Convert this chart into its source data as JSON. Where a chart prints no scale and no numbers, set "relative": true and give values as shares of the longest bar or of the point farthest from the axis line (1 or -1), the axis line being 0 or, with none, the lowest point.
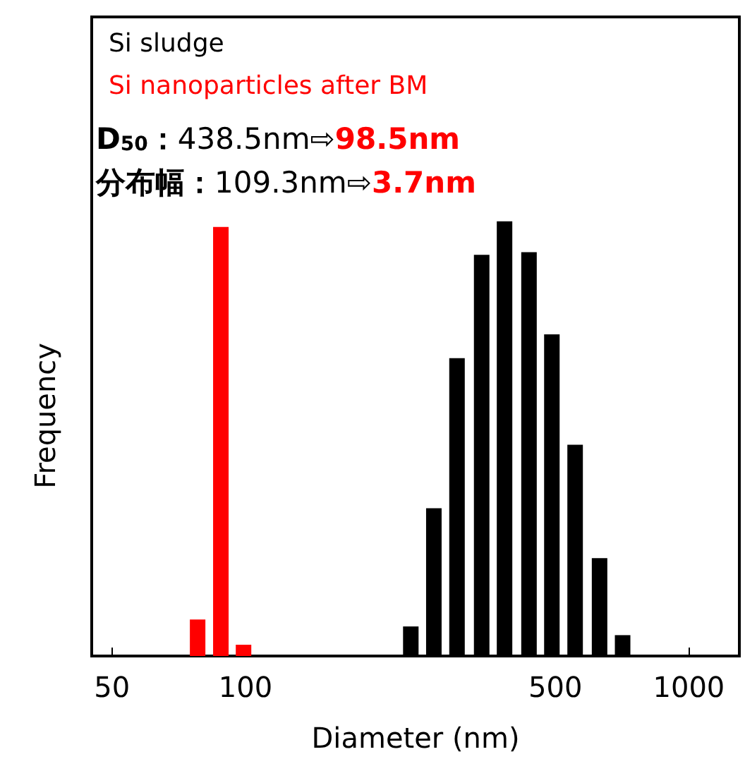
{
  "chart_data": {
    "type": "bar",
    "xlabel": "Diameter (nm)",
    "ylabel": "Frequency",
    "relative": true,
    "log": "x",
    "xlim": [
      45,
      1300
    ],
    "xticks": [
      50,
      100,
      500,
      1000
    ],
    "legend": "top left",
    "grid": false,
    "series": [
      {
        "name": "Si sludge",
        "color": "#000000",
        "x": [
          236,
          266,
          300,
          341,
          384,
          436,
          491,
          554,
          629,
          709
        ],
        "values": [
          0.068,
          0.34,
          0.685,
          0.923,
          1,
          0.929,
          0.74,
          0.486,
          0.225,
          0.048
        ]
      },
      {
        "name": "Si nanoparticles after BM",
        "color": "#ff0000",
        "x": [
          78,
          88,
          99
        ],
        "values": [
          0.084,
          0.987,
          0.026
        ]
      }
    ],
    "annotations": [
      "D$_{50}$：438.5nm⇨98.5nm",
      "分布幅：109.3nm⇨3.7nm"
    ]
  }
}
